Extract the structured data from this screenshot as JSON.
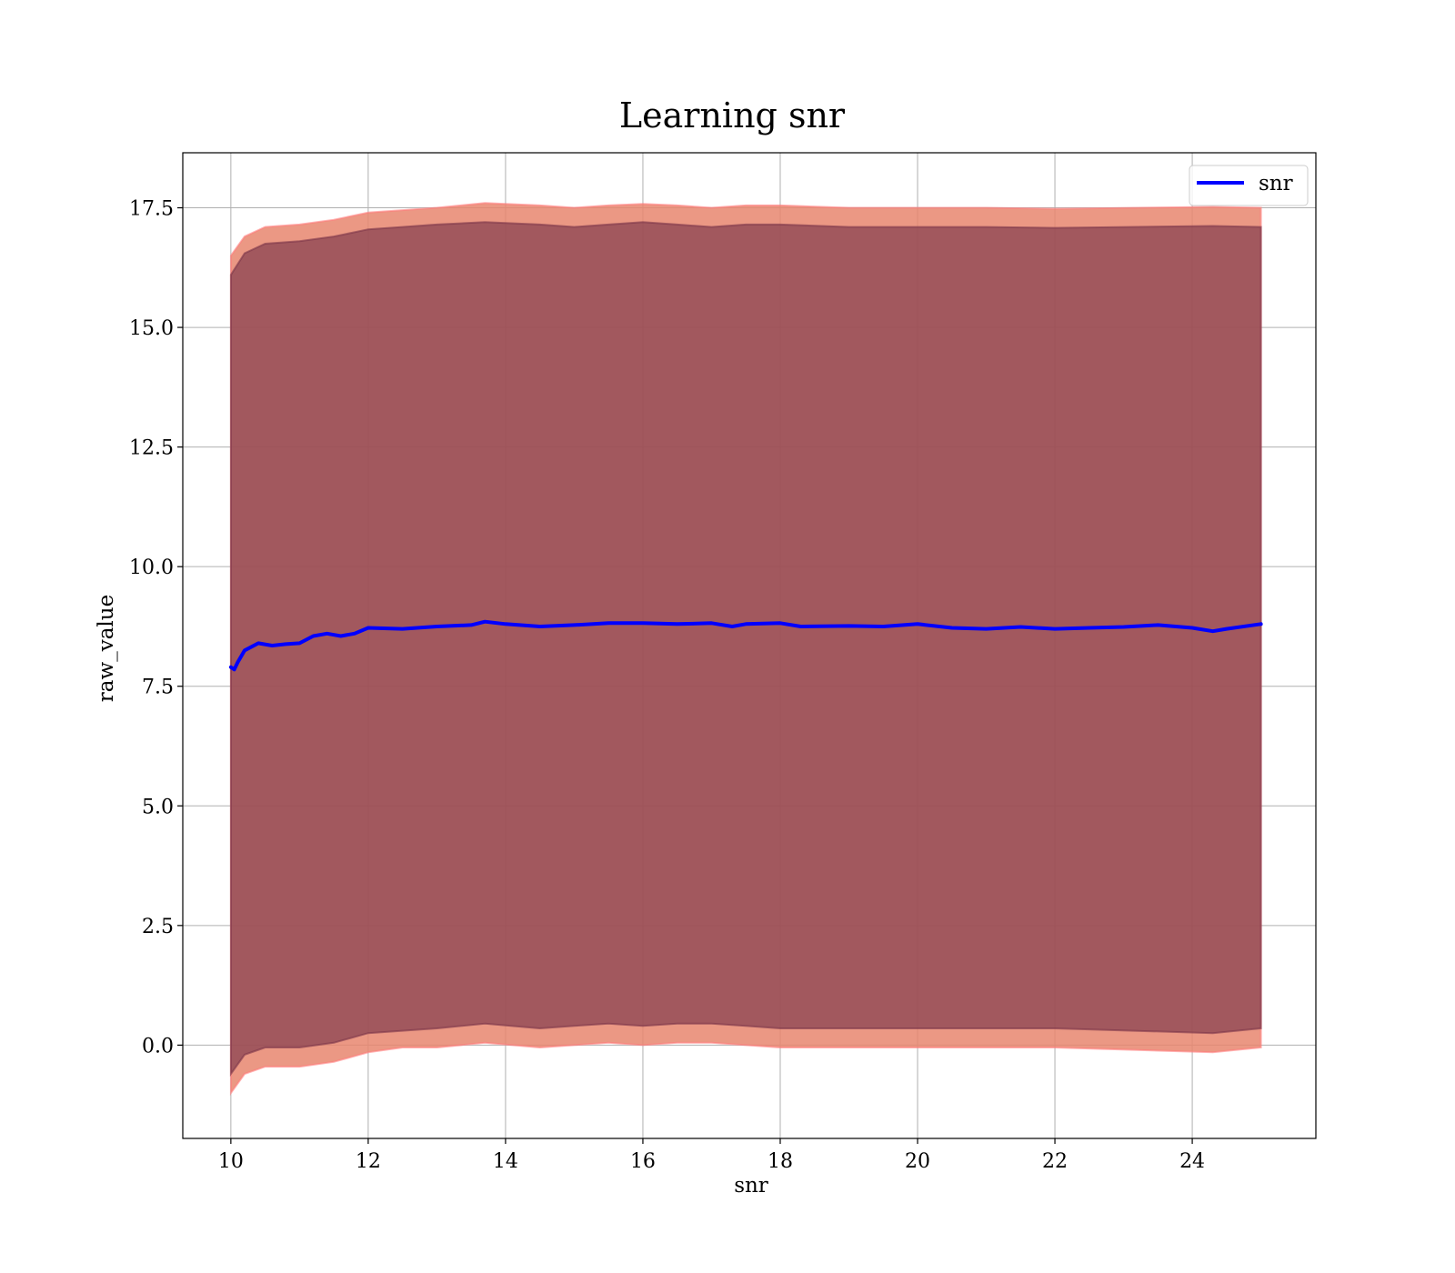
{
  "chart_data": {
    "type": "line",
    "title": "Learning snr",
    "xlabel": "snr",
    "ylabel": "raw_value",
    "xlim": [
      9.3,
      25.8
    ],
    "ylim": [
      -1.95,
      18.65
    ],
    "xticks": [
      10,
      12,
      14,
      16,
      18,
      20,
      22,
      24
    ],
    "xtick_labels": [
      "10",
      "12",
      "14",
      "16",
      "18",
      "20",
      "22",
      "24"
    ],
    "yticks": [
      0.0,
      2.5,
      5.0,
      7.5,
      10.0,
      12.5,
      15.0,
      17.5
    ],
    "ytick_labels": [
      "0.0",
      "2.5",
      "5.0",
      "7.5",
      "10.0",
      "12.5",
      "15.0",
      "17.5"
    ],
    "grid": true,
    "legend_position": "top-right",
    "series": [
      {
        "name": "snr",
        "color": "#0000ff",
        "x": [
          10.0,
          10.05,
          10.1,
          10.2,
          10.4,
          10.6,
          10.8,
          11.0,
          11.2,
          11.4,
          11.6,
          11.8,
          12.0,
          12.5,
          13.0,
          13.5,
          13.7,
          14.0,
          14.5,
          15.0,
          15.5,
          16.0,
          16.5,
          17.0,
          17.3,
          17.5,
          18.0,
          18.3,
          19.0,
          19.5,
          20.0,
          20.5,
          21.0,
          21.5,
          22.0,
          22.5,
          23.0,
          23.5,
          24.0,
          24.3,
          24.5,
          25.0
        ],
        "values": [
          7.9,
          7.85,
          8.0,
          8.25,
          8.4,
          8.35,
          8.38,
          8.4,
          8.55,
          8.6,
          8.55,
          8.6,
          8.72,
          8.7,
          8.75,
          8.78,
          8.85,
          8.8,
          8.75,
          8.78,
          8.82,
          8.82,
          8.8,
          8.82,
          8.75,
          8.8,
          8.82,
          8.75,
          8.76,
          8.75,
          8.8,
          8.72,
          8.7,
          8.74,
          8.7,
          8.72,
          8.74,
          8.78,
          8.72,
          8.65,
          8.7,
          8.8
        ]
      }
    ],
    "bands": [
      {
        "color": "#e8866e",
        "edge_color": "#ff7b7b",
        "upper": [
          16.5,
          16.9,
          17.1,
          17.15,
          17.25,
          17.4,
          17.45,
          17.5,
          17.6,
          17.55,
          17.5,
          17.55,
          17.58,
          17.55,
          17.5,
          17.55,
          17.55,
          17.5,
          17.5,
          17.5,
          17.48,
          17.52,
          17.5
        ],
        "lower": [
          -1.0,
          -0.6,
          -0.45,
          -0.45,
          -0.35,
          -0.15,
          -0.05,
          -0.05,
          0.05,
          -0.05,
          0.0,
          0.05,
          0.0,
          0.05,
          0.05,
          0.0,
          -0.05,
          -0.05,
          -0.05,
          -0.05,
          -0.05,
          -0.15,
          -0.05
        ]
      },
      {
        "color": "#7b3549",
        "edge_color": "#7b3549",
        "upper": [
          16.1,
          16.55,
          16.75,
          16.8,
          16.9,
          17.05,
          17.1,
          17.15,
          17.2,
          17.15,
          17.1,
          17.15,
          17.2,
          17.15,
          17.1,
          17.15,
          17.15,
          17.1,
          17.1,
          17.1,
          17.08,
          17.12,
          17.1
        ],
        "lower": [
          -0.6,
          -0.2,
          -0.05,
          -0.05,
          0.05,
          0.25,
          0.3,
          0.35,
          0.45,
          0.35,
          0.4,
          0.45,
          0.4,
          0.45,
          0.45,
          0.4,
          0.35,
          0.35,
          0.35,
          0.35,
          0.35,
          0.25,
          0.35
        ]
      }
    ],
    "band_x": [
      10.0,
      10.2,
      10.5,
      11.0,
      11.5,
      12.0,
      12.5,
      13.0,
      13.7,
      14.5,
      15.0,
      15.5,
      16.0,
      16.5,
      17.0,
      17.5,
      18.0,
      19.0,
      20.0,
      21.0,
      22.0,
      24.3,
      25.0
    ]
  }
}
